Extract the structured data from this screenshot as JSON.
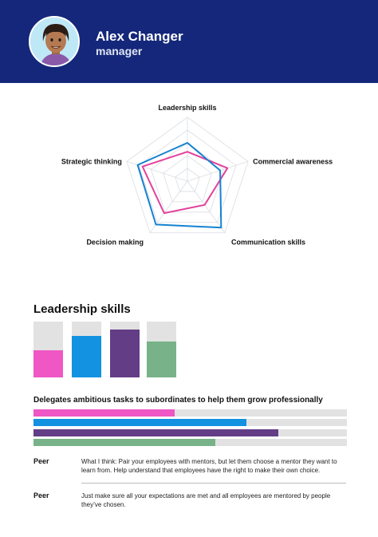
{
  "profile": {
    "name": "Alex Changer",
    "role": "manager"
  },
  "chart_data": {
    "type": "radar",
    "axes": [
      "Leadership skills",
      "Commercial awareness",
      "Communication skills",
      "Decision making",
      "Strategic thinking"
    ],
    "max": 5,
    "series": [
      {
        "color": "#e4419c",
        "values": [
          2.3,
          3.3,
          2.3,
          3.1,
          3.7
        ]
      },
      {
        "color": "#1582d1",
        "values": [
          3.0,
          2.7,
          4.5,
          4.2,
          4.1
        ]
      }
    ]
  },
  "leadership": {
    "title": "Leadership skills",
    "bars": [
      {
        "color": "#ee57c4",
        "value": 0.49
      },
      {
        "color": "#1292e0",
        "value": 0.74
      },
      {
        "color": "#633d86",
        "value": 0.86
      },
      {
        "color": "#78b289",
        "value": 0.64
      }
    ]
  },
  "question": {
    "text": "Delegates ambitious tasks to subordinates to help them grow professionally",
    "bars": [
      {
        "color": "#ee57c4",
        "value": 0.45
      },
      {
        "color": "#1292e0",
        "value": 0.68
      },
      {
        "color": "#633d86",
        "value": 0.78
      },
      {
        "color": "#78b289",
        "value": 0.58
      }
    ]
  },
  "comments": [
    {
      "who": "Peer",
      "text": "What I think: Pair your employees with mentors, but let them choose a mentor they want to learn from. Help understand that employees have the right to make their own choice."
    },
    {
      "who": "Peer",
      "text": "Just make sure all your expectations are met and all employees are mentored by people they’ve chosen."
    }
  ]
}
